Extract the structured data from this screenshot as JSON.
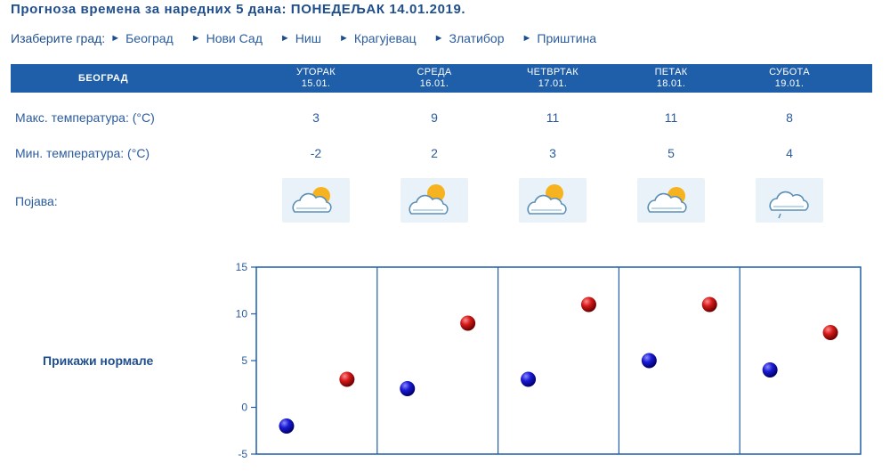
{
  "header": {
    "title": "Прогноза времена за наредних 5 дана: ПОНЕДЕЉАК  14.01.2019."
  },
  "city_select": {
    "label": "Изаберите град:",
    "cities": [
      "Београд",
      "Нови Сад",
      "Ниш",
      "Крагујевац",
      "Златибор",
      "Приштина"
    ]
  },
  "table": {
    "city": "БЕОГРАД",
    "days": [
      {
        "name": "УТОРАК",
        "date": "15.01.",
        "max": "3",
        "min": "-2",
        "icon": "sun-behind-cloud-icon"
      },
      {
        "name": "СРЕДА",
        "date": "16.01.",
        "max": "9",
        "min": "2",
        "icon": "sun-behind-cloud-icon"
      },
      {
        "name": "ЧЕТВРТАК",
        "date": "17.01.",
        "max": "11",
        "min": "3",
        "icon": "sun-behind-cloud-icon"
      },
      {
        "name": "ПЕТАК",
        "date": "18.01.",
        "max": "11",
        "min": "5",
        "icon": "sun-behind-cloud-icon"
      },
      {
        "name": "СУБОТА",
        "date": "19.01.",
        "max": "8",
        "min": "4",
        "icon": "cloud-light-rain-icon"
      }
    ],
    "max_label": "Макс. температура: (°C)",
    "min_label": "Мин. температура: (°C)",
    "phenomenon_label": "Појава:"
  },
  "normals_link": "Прикажи нормале",
  "chart_data": {
    "type": "scatter",
    "categories": [
      "УТОРАК",
      "СРЕДА",
      "ЧЕТВРТАК",
      "ПЕТАК",
      "СУБОТА"
    ],
    "series": [
      {
        "values": [
          -2,
          2,
          3,
          5,
          4
        ],
        "color": "#1a1acc"
      },
      {
        "values": [
          3,
          9,
          11,
          11,
          8
        ],
        "color": "#c81414"
      }
    ],
    "ylim": [
      -5,
      15
    ],
    "yticks": [
      "15",
      "10",
      "5",
      "0",
      "-5"
    ],
    "xlabel": "",
    "ylabel": "",
    "grid": "vertical separators between days",
    "axis_color": "#1f5ea8"
  },
  "colors": {
    "brand_blue": "#1f5ea8",
    "text_blue": "#2b5c9e",
    "max_dot": "#c81414",
    "min_dot": "#1a1acc"
  }
}
